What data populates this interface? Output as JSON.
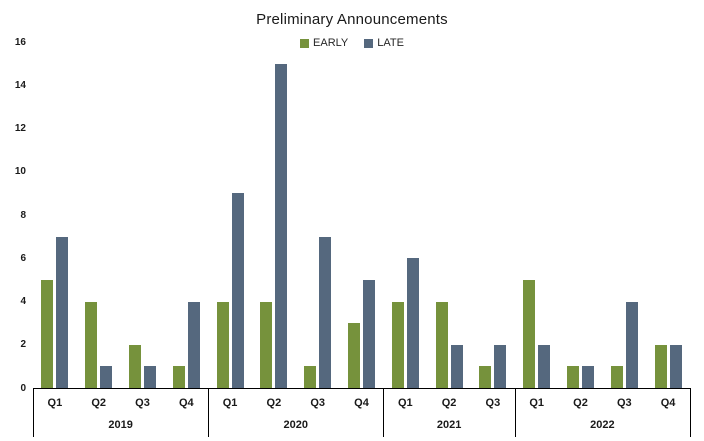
{
  "chart_data": {
    "type": "bar",
    "title": "Preliminary Announcements",
    "legend_position": "top-center",
    "x_groups": [
      {
        "year": "2019",
        "quarters": [
          "Q1",
          "Q2",
          "Q3",
          "Q4"
        ]
      },
      {
        "year": "2020",
        "quarters": [
          "Q1",
          "Q2",
          "Q3",
          "Q4"
        ]
      },
      {
        "year": "2021",
        "quarters": [
          "Q1",
          "Q2",
          "Q3"
        ]
      },
      {
        "year": "2022",
        "quarters": [
          "Q1",
          "Q2",
          "Q3",
          "Q4"
        ]
      }
    ],
    "series": [
      {
        "name": "EARLY",
        "color": "#76923C",
        "values": [
          5,
          4,
          2,
          1,
          4,
          4,
          1,
          3,
          4,
          4,
          1,
          5,
          1,
          1,
          2
        ]
      },
      {
        "name": "LATE",
        "color": "#55687E",
        "values": [
          7,
          1,
          1,
          4,
          9,
          15,
          7,
          5,
          6,
          2,
          2,
          2,
          1,
          4,
          2
        ]
      }
    ],
    "ylim": [
      0,
      16
    ],
    "yticks": [
      0,
      2,
      4,
      6,
      8,
      10,
      12,
      14,
      16
    ],
    "grid": false
  },
  "colors": {
    "axis": "#000000",
    "text": "#1a1a1a",
    "background": "#ffffff"
  }
}
